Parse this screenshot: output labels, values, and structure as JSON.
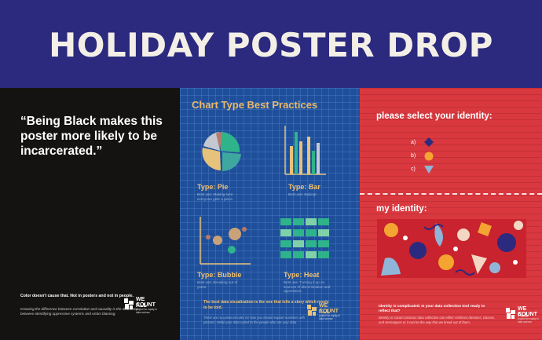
{
  "header": {
    "title": "HOLIDAY POSTER DROP",
    "bg_color": "#2b2a7f"
  },
  "poster1": {
    "quote": "“Being Black makes this poster more likely to be incarcerated.”",
    "caption_bold": "Color doesn't cause that. Not in posters and not in people.",
    "caption_small": "Knowing the difference between correlation and causality is the difference between identifying oppressive systems and victim blaming.",
    "logo": {
      "line1": "WE ALL",
      "line2": "COUNT",
      "tag": "project for equity in data science"
    }
  },
  "poster2": {
    "title": "Chart Type Best Practices",
    "pie": {
      "label": "Type: Pie",
      "use": "Best use: Making sure everyone gets a piece."
    },
    "bar": {
      "label": "Type: Bar",
      "use": "Best use: Baking!"
    },
    "bubble": {
      "label": "Type: Bubble",
      "use": "Best use: Breaking out of yours."
    },
    "heat": {
      "label": "Type: Heat",
      "use": "Best use: Turning it up on sources of discrimination and oppression."
    },
    "bottom_note": "The best data visualization is the one that tells a story which needs to be told.",
    "bottom_small": "There are no universal rules for how you should explain numbers with pictures. Make your data suited to the people who are your data.",
    "logo": {
      "line1": "WE ALL",
      "line2": "COUNT",
      "tag": "project for equity in data science"
    }
  },
  "poster3": {
    "select_title": "please select your identity:",
    "options": [
      {
        "label": "a)"
      },
      {
        "label": "b)"
      },
      {
        "label": "c)"
      }
    ],
    "my_identity": "my identity:",
    "caption_bold": "Identity is complicated. Is your data collection tool ready to reflect that?",
    "caption_small": "Identity or social construct data collection can either reinforce divisions, classes, and stereotypes or it can be the way that we break out of them.",
    "logo": {
      "line1": "WE ALL",
      "line2": "COUNT",
      "tag": "project for equity in data science"
    }
  }
}
